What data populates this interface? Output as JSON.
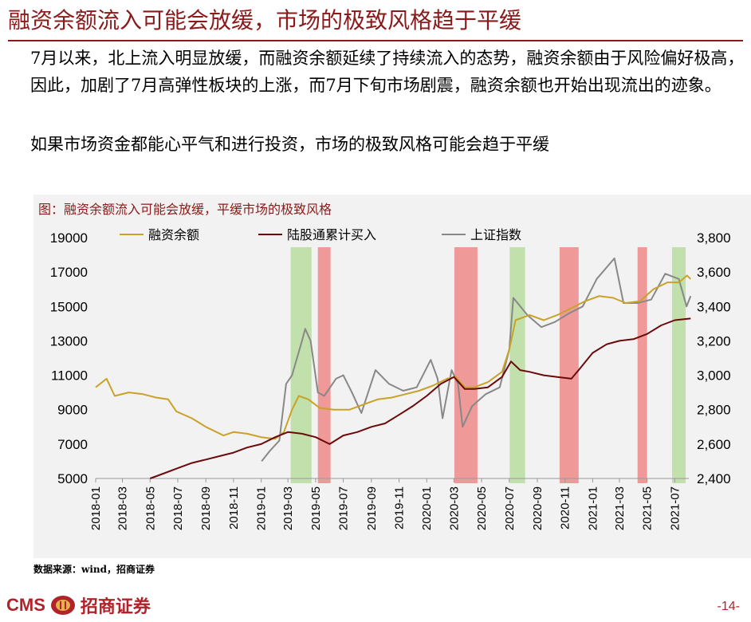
{
  "page": {
    "title": "融资余额流入可能会放缓，市场的极致风格趋于平缓",
    "paragraph1": "7月以来，北上流入明显放缓，而融资余额延续了持续流入的态势，融资余额由于风险偏好极高，因此，加剧了7月高弹性板块的上涨，而7月下旬市场剧震，融资余额也开始出现流出的迹象。",
    "paragraph2": "如果市场资金都能心平气和进行投资，市场的极致风格可能会趋于平缓",
    "source": "数据来源：wind，招商证券",
    "logo_text": "CMS",
    "logo_cn": "招商证券",
    "page_number": "-14-"
  },
  "chart_data": {
    "type": "line",
    "title": "图：融资余额流入可能会放缓，平缓市场的极致风格",
    "left_axis": {
      "min": 5000,
      "max": 19000,
      "ticks": [
        "5000",
        "7000",
        "9000",
        "11000",
        "13000",
        "15000",
        "17000",
        "19000"
      ]
    },
    "right_axis": {
      "min": 2400,
      "max": 3800,
      "ticks": [
        "2,400",
        "2,600",
        "2,800",
        "3,000",
        "3,200",
        "3,400",
        "3,600",
        "3,800"
      ]
    },
    "x_ticks": [
      "2018-01",
      "2018-03",
      "2018-05",
      "2018-07",
      "2018-09",
      "2018-11",
      "2019-01",
      "2019-03",
      "2019-05",
      "2019-07",
      "2019-09",
      "2019-11",
      "2020-01",
      "2020-03",
      "2020-05",
      "2020-07",
      "2020-09",
      "2020-11",
      "2021-01",
      "2021-03",
      "2021-05",
      "2021-07"
    ],
    "x_range": [
      "2018-01",
      "2021-08"
    ],
    "legend_position": "top",
    "series": [
      {
        "name": "融资余额",
        "axis": "left",
        "color": "#C9A227",
        "points": [
          [
            "2018-01-01",
            10300
          ],
          [
            "2018-01-25",
            10800
          ],
          [
            "2018-02-12",
            9800
          ],
          [
            "2018-03-15",
            10000
          ],
          [
            "2018-04-15",
            9900
          ],
          [
            "2018-05-15",
            9700
          ],
          [
            "2018-06-10",
            9600
          ],
          [
            "2018-06-28",
            8900
          ],
          [
            "2018-08-01",
            8500
          ],
          [
            "2018-09-01",
            8000
          ],
          [
            "2018-10-10",
            7500
          ],
          [
            "2018-11-01",
            7700
          ],
          [
            "2018-12-01",
            7600
          ],
          [
            "2019-01-01",
            7400
          ],
          [
            "2019-02-01",
            7300
          ],
          [
            "2019-02-20",
            7700
          ],
          [
            "2019-03-10",
            9000
          ],
          [
            "2019-03-25",
            9800
          ],
          [
            "2019-04-15",
            9600
          ],
          [
            "2019-05-10",
            9100
          ],
          [
            "2019-06-10",
            9000
          ],
          [
            "2019-07-15",
            9000
          ],
          [
            "2019-08-15",
            9300
          ],
          [
            "2019-09-15",
            9600
          ],
          [
            "2019-10-15",
            9700
          ],
          [
            "2019-11-15",
            9900
          ],
          [
            "2019-12-15",
            10100
          ],
          [
            "2020-01-15",
            10400
          ],
          [
            "2020-02-15",
            10800
          ],
          [
            "2020-03-05",
            10900
          ],
          [
            "2020-03-25",
            10300
          ],
          [
            "2020-04-15",
            10300
          ],
          [
            "2020-05-15",
            10600
          ],
          [
            "2020-06-15",
            11200
          ],
          [
            "2020-07-01",
            12500
          ],
          [
            "2020-07-15",
            14200
          ],
          [
            "2020-08-15",
            14500
          ],
          [
            "2020-09-15",
            14200
          ],
          [
            "2020-10-15",
            14500
          ],
          [
            "2020-11-15",
            14900
          ],
          [
            "2020-12-15",
            15300
          ],
          [
            "2021-01-15",
            15600
          ],
          [
            "2021-02-15",
            15500
          ],
          [
            "2021-03-15",
            15200
          ],
          [
            "2021-04-15",
            15300
          ],
          [
            "2021-05-15",
            16000
          ],
          [
            "2021-06-15",
            16400
          ],
          [
            "2021-07-10",
            16400
          ],
          [
            "2021-07-28",
            16800
          ],
          [
            "2021-08-05",
            16600
          ]
        ]
      },
      {
        "name": "陆股通累计买入",
        "axis": "left",
        "color": "#6B0A0A",
        "points": [
          [
            "2018-05-01",
            5000
          ],
          [
            "2018-06-01",
            5300
          ],
          [
            "2018-07-01",
            5600
          ],
          [
            "2018-08-01",
            5900
          ],
          [
            "2018-09-01",
            6100
          ],
          [
            "2018-10-01",
            6300
          ],
          [
            "2018-11-01",
            6500
          ],
          [
            "2018-12-01",
            6800
          ],
          [
            "2019-01-01",
            7000
          ],
          [
            "2019-02-01",
            7400
          ],
          [
            "2019-03-01",
            7700
          ],
          [
            "2019-04-01",
            7600
          ],
          [
            "2019-05-01",
            7400
          ],
          [
            "2019-06-01",
            7000
          ],
          [
            "2019-07-01",
            7500
          ],
          [
            "2019-08-01",
            7700
          ],
          [
            "2019-09-01",
            8000
          ],
          [
            "2019-10-01",
            8200
          ],
          [
            "2019-11-01",
            8700
          ],
          [
            "2019-12-01",
            9200
          ],
          [
            "2020-01-01",
            9800
          ],
          [
            "2020-02-01",
            10500
          ],
          [
            "2020-03-01",
            10900
          ],
          [
            "2020-03-25",
            10200
          ],
          [
            "2020-04-15",
            10200
          ],
          [
            "2020-05-15",
            10300
          ],
          [
            "2020-06-15",
            10900
          ],
          [
            "2020-07-05",
            11800
          ],
          [
            "2020-07-25",
            11300
          ],
          [
            "2020-08-15",
            11200
          ],
          [
            "2020-09-15",
            11000
          ],
          [
            "2020-10-15",
            10900
          ],
          [
            "2020-11-15",
            10800
          ],
          [
            "2020-12-01",
            11300
          ],
          [
            "2021-01-01",
            12300
          ],
          [
            "2021-02-01",
            12800
          ],
          [
            "2021-03-01",
            13000
          ],
          [
            "2021-04-01",
            13100
          ],
          [
            "2021-05-01",
            13400
          ],
          [
            "2021-06-01",
            13900
          ],
          [
            "2021-07-01",
            14200
          ],
          [
            "2021-08-05",
            14300
          ]
        ]
      },
      {
        "name": "上证指数",
        "axis": "right",
        "color": "#888888",
        "points": [
          [
            "2019-01-02",
            2500
          ],
          [
            "2019-01-20",
            2560
          ],
          [
            "2019-02-10",
            2620
          ],
          [
            "2019-02-25",
            2950
          ],
          [
            "2019-03-10",
            3000
          ],
          [
            "2019-04-01",
            3200
          ],
          [
            "2019-04-08",
            3270
          ],
          [
            "2019-04-20",
            3200
          ],
          [
            "2019-05-06",
            2900
          ],
          [
            "2019-05-20",
            2880
          ],
          [
            "2019-06-15",
            2980
          ],
          [
            "2019-07-01",
            3000
          ],
          [
            "2019-07-20",
            2900
          ],
          [
            "2019-08-10",
            2780
          ],
          [
            "2019-09-10",
            3030
          ],
          [
            "2019-10-10",
            2950
          ],
          [
            "2019-11-10",
            2910
          ],
          [
            "2019-12-10",
            2930
          ],
          [
            "2020-01-10",
            3090
          ],
          [
            "2020-01-25",
            2980
          ],
          [
            "2020-02-05",
            2750
          ],
          [
            "2020-02-25",
            3030
          ],
          [
            "2020-03-10",
            2950
          ],
          [
            "2020-03-20",
            2700
          ],
          [
            "2020-04-10",
            2820
          ],
          [
            "2020-05-10",
            2890
          ],
          [
            "2020-06-10",
            2930
          ],
          [
            "2020-07-01",
            3150
          ],
          [
            "2020-07-10",
            3450
          ],
          [
            "2020-08-10",
            3350
          ],
          [
            "2020-09-10",
            3280
          ],
          [
            "2020-10-10",
            3310
          ],
          [
            "2020-11-10",
            3360
          ],
          [
            "2020-12-10",
            3400
          ],
          [
            "2021-01-10",
            3560
          ],
          [
            "2021-02-18",
            3680
          ],
          [
            "2021-03-10",
            3420
          ],
          [
            "2021-04-10",
            3420
          ],
          [
            "2021-05-10",
            3440
          ],
          [
            "2021-06-10",
            3590
          ],
          [
            "2021-07-10",
            3560
          ],
          [
            "2021-07-27",
            3400
          ],
          [
            "2021-08-05",
            3460
          ]
        ]
      }
    ],
    "shaded_bands": [
      {
        "start": "2019-03-07",
        "end": "2019-04-22",
        "color": "#B8DDA0"
      },
      {
        "start": "2019-05-06",
        "end": "2019-06-03",
        "color": "#F08A8A"
      },
      {
        "start": "2020-03-02",
        "end": "2020-04-22",
        "color": "#F08A8A"
      },
      {
        "start": "2020-07-02",
        "end": "2020-08-05",
        "color": "#B8DDA0"
      },
      {
        "start": "2020-10-20",
        "end": "2020-12-01",
        "color": "#F08A8A"
      },
      {
        "start": "2021-04-10",
        "end": "2021-05-01",
        "color": "#F08A8A"
      },
      {
        "start": "2021-06-25",
        "end": "2021-07-25",
        "color": "#B8DDA0"
      }
    ]
  }
}
